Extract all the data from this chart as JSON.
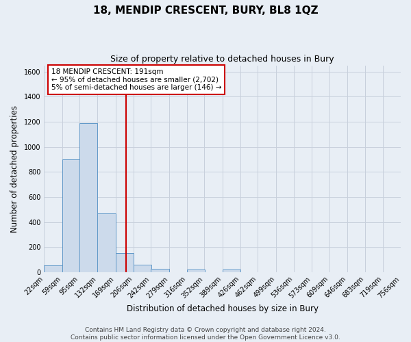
{
  "title": "18, MENDIP CRESCENT, BURY, BL8 1QZ",
  "subtitle": "Size of property relative to detached houses in Bury",
  "xlabel": "Distribution of detached houses by size in Bury",
  "ylabel": "Number of detached properties",
  "bin_edges": [
    22,
    59,
    95,
    132,
    169,
    206,
    242,
    279,
    316,
    352,
    389,
    426,
    462,
    499,
    536,
    573,
    609,
    646,
    683,
    719,
    756
  ],
  "bar_heights": [
    55,
    900,
    1190,
    470,
    150,
    60,
    25,
    0,
    20,
    0,
    20,
    0,
    0,
    0,
    0,
    0,
    0,
    0,
    0,
    0
  ],
  "bar_color": "#ccdaeb",
  "bar_edgecolor": "#6098c8",
  "property_line_x": 191,
  "property_line_color": "#cc0000",
  "annotation_lines": [
    "18 MENDIP CRESCENT: 191sqm",
    "← 95% of detached houses are smaller (2,702)",
    "5% of semi-detached houses are larger (146) →"
  ],
  "ylim": [
    0,
    1650
  ],
  "yticks": [
    0,
    200,
    400,
    600,
    800,
    1000,
    1200,
    1400,
    1600
  ],
  "footer_lines": [
    "Contains HM Land Registry data © Crown copyright and database right 2024.",
    "Contains public sector information licensed under the Open Government Licence v3.0."
  ],
  "background_color": "#e8eef5",
  "grid_color": "#d0d8e4",
  "title_fontsize": 11,
  "subtitle_fontsize": 9,
  "axis_label_fontsize": 8.5,
  "tick_fontsize": 7,
  "footer_fontsize": 6.5,
  "annotation_fontsize": 7.5
}
